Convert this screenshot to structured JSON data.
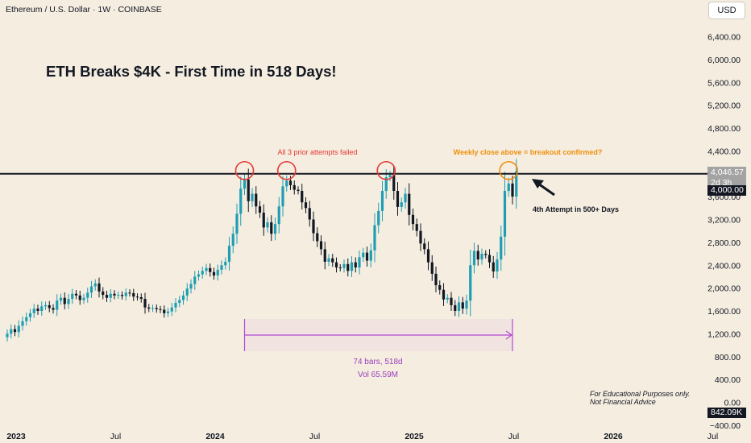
{
  "header": {
    "symbol_line": "Ethereum / U.S. Dollar · 1W · COINBASE",
    "currency_button": "USD"
  },
  "title": "ETH Breaks $4K - First Time in 518 Days!",
  "annotations": {
    "prior_attempts": "All 3 prior attempts failed",
    "weekly_close": "Weekly close above = breakout confirmed?",
    "fourth_attempt": "4th Attempt in 500+ Days",
    "range_bars": "74 bars, 518d",
    "range_vol": "Vol 65.59M",
    "disclaimer_line1": "For Educational Purposes only.",
    "disclaimer_line2": "Not Financial Advice"
  },
  "price_tags": {
    "last_price": "4,046.57",
    "countdown": "2d 3h",
    "level": "4,000.00",
    "crosshair": "842.09K"
  },
  "colors": {
    "background": "#f4ede0",
    "up_candle": "#1f9eb3",
    "down_candle": "#131722",
    "resistance_line": "#131722",
    "red_circle": "#e53935",
    "orange_circle": "#f0900c",
    "range_measure": "#b44ad6",
    "range_fill": "#f0dfe0"
  },
  "chart_data": {
    "type": "candlestick",
    "y_axis": {
      "min": -400,
      "max": 6600,
      "ticks": [
        -400,
        0,
        400,
        800,
        1200,
        1600,
        2000,
        2400,
        2800,
        3200,
        3600,
        4000,
        4400,
        4800,
        5200,
        5600,
        6000,
        6400
      ],
      "labels": [
        "−400.00",
        "0.00",
        "400.00",
        "800.00",
        "1,200.00",
        "1,600.00",
        "2,000.00",
        "2,400.00",
        "2,800.00",
        "3,200.00",
        "3,600.00",
        "4,000.00",
        "4,400.00",
        "4,800.00",
        "5,200.00",
        "5,600.00",
        "6,000.00",
        "6,400.00"
      ]
    },
    "x_axis": {
      "labels": [
        "2023",
        "Jul",
        "2024",
        "Jul",
        "2025",
        "Jul",
        "2026",
        "Jul"
      ],
      "bold": [
        true,
        false,
        true,
        false,
        true,
        false,
        true,
        false
      ],
      "week_index": [
        0,
        26,
        52,
        78,
        104,
        130,
        156,
        182
      ]
    },
    "resistance_level": 4000,
    "attempt_circles": [
      {
        "week": 62,
        "price": 4000,
        "color": "red"
      },
      {
        "week": 73,
        "price": 4000,
        "color": "red"
      },
      {
        "week": 99,
        "price": 4000,
        "color": "red"
      },
      {
        "week": 131,
        "price": 4000,
        "color": "orange"
      }
    ],
    "range": {
      "from_week": 62,
      "to_week": 132,
      "bars": 74,
      "days": 518,
      "volume": "65.59M"
    },
    "closes": [
      1200,
      1280,
      1230,
      1340,
      1420,
      1490,
      1560,
      1640,
      1600,
      1680,
      1700,
      1650,
      1620,
      1780,
      1830,
      1720,
      1810,
      1900,
      1870,
      1790,
      1830,
      1920,
      2030,
      2080,
      1940,
      1880,
      1830,
      1900,
      1870,
      1880,
      1860,
      1920,
      1910,
      1850,
      1840,
      1810,
      1660,
      1640,
      1650,
      1630,
      1620,
      1560,
      1590,
      1660,
      1740,
      1790,
      1870,
      1990,
      2070,
      2200,
      2240,
      2300,
      2350,
      2280,
      2220,
      2320,
      2400,
      2460,
      2740,
      2950,
      3300,
      3740,
      3900,
      3520,
      3650,
      3430,
      3320,
      3060,
      3150,
      2950,
      3120,
      3430,
      3780,
      3880,
      3800,
      3720,
      3700,
      3500,
      3400,
      3200,
      2960,
      2820,
      2680,
      2460,
      2520,
      2450,
      2360,
      2350,
      2420,
      2300,
      2450,
      2360,
      2540,
      2620,
      2480,
      2660,
      3100,
      3350,
      3700,
      3940,
      3980,
      3700,
      3420,
      3500,
      3650,
      3280,
      3120,
      3000,
      2780,
      2680,
      2450,
      2250,
      2050,
      1970,
      1800,
      1830,
      1700,
      1600,
      1750,
      1640,
      1780,
      2400,
      2650,
      2500,
      2600,
      2580,
      2450,
      2290,
      2500,
      2900,
      3700,
      3830,
      3600,
      4046.57
    ]
  }
}
